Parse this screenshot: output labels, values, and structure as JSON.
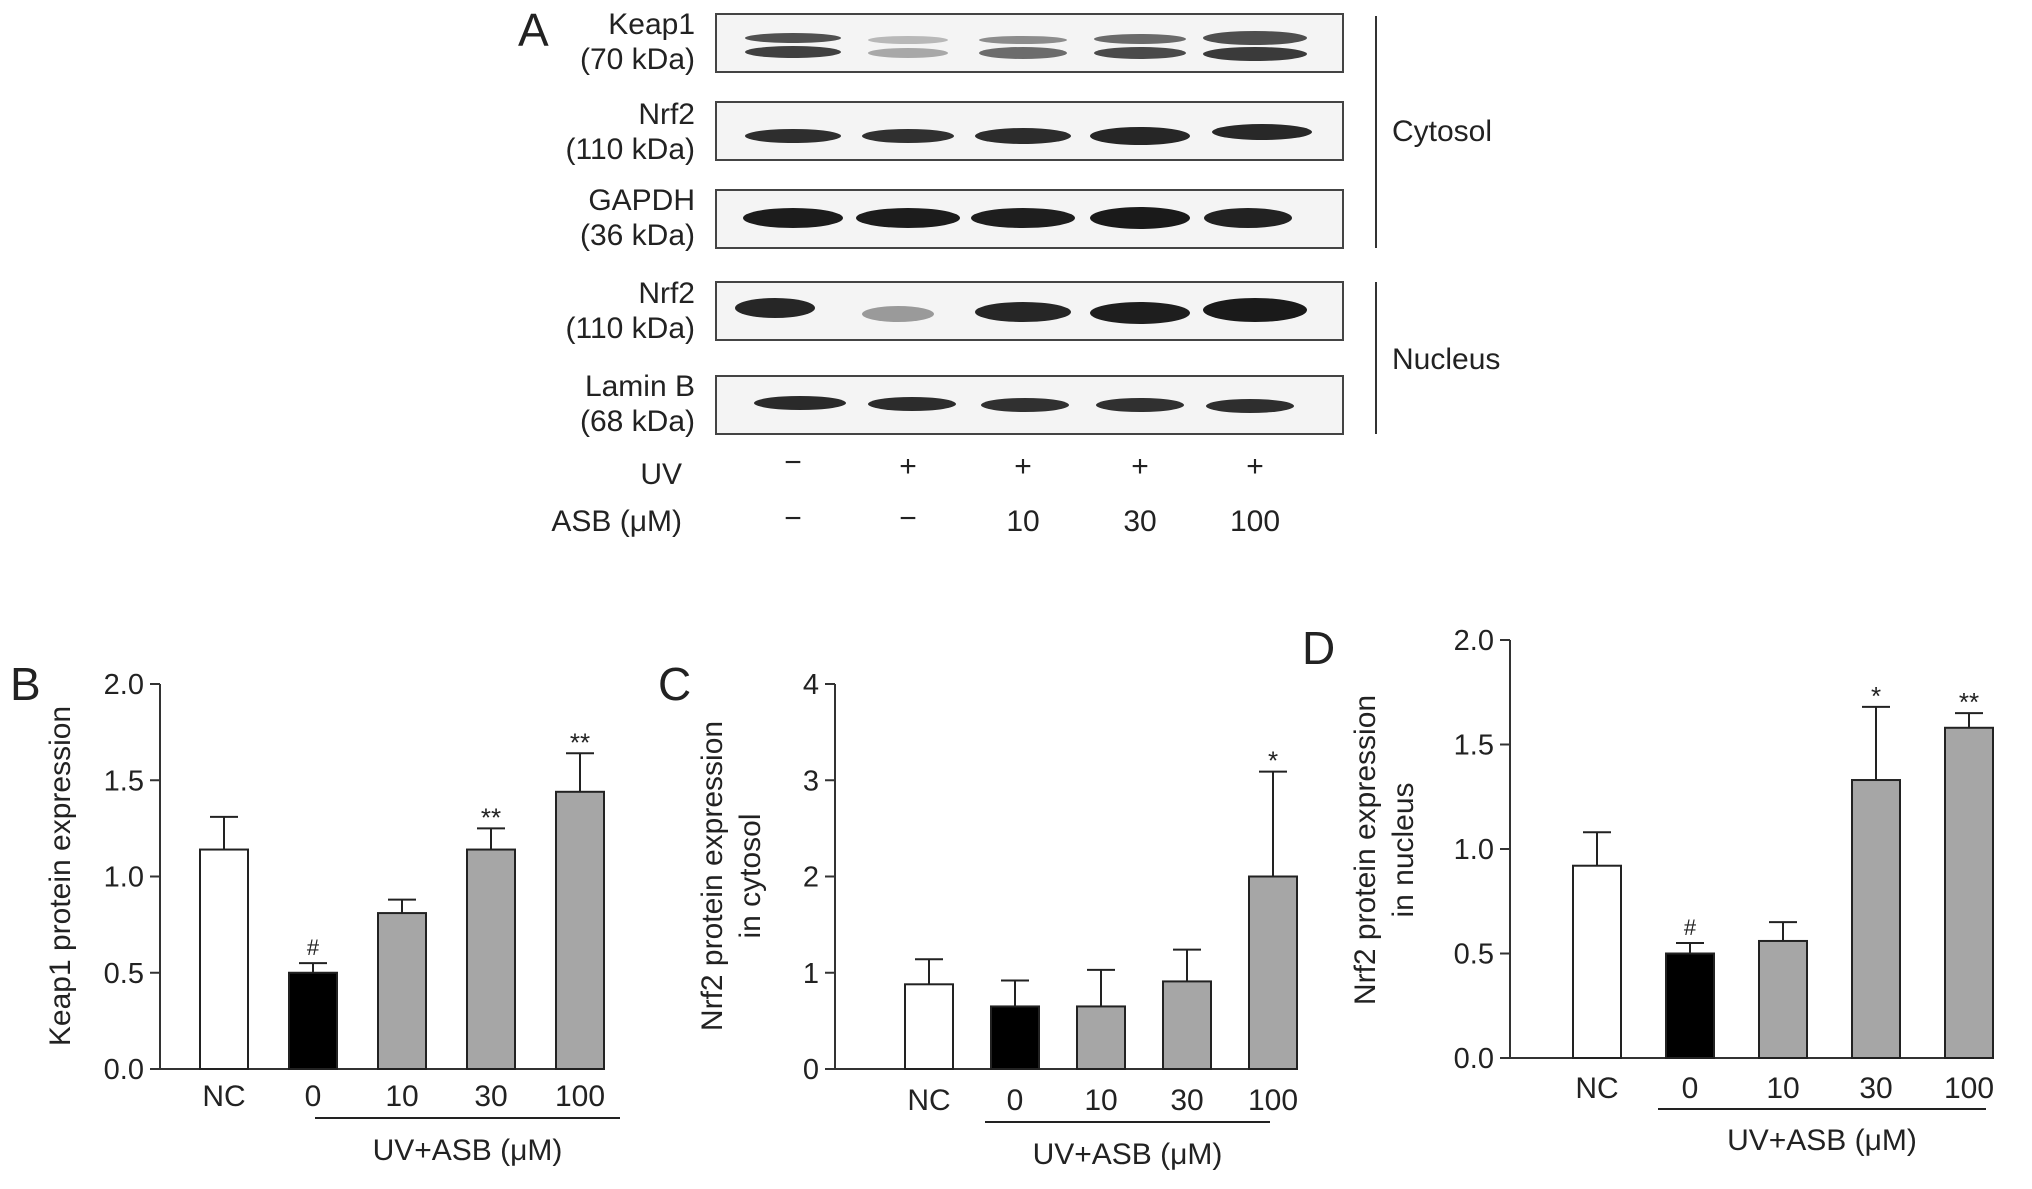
{
  "blot": {
    "panel_letter": "A",
    "rows": [
      {
        "protein": "Keap1",
        "mw": "(70 kDa)"
      },
      {
        "protein": "Nrf2",
        "mw": "(110 kDa)"
      },
      {
        "protein": "GAPDH",
        "mw": "(36 kDa)"
      },
      {
        "protein": "Nrf2",
        "mw": "(110 kDa)"
      },
      {
        "protein": "Lamin B",
        "mw": "(68 kDa)"
      }
    ],
    "fractions": [
      "Cytosol",
      "Nucleus"
    ],
    "uv_label": "UV",
    "uv_values": [
      "−",
      "+",
      "+",
      "+",
      "+"
    ],
    "asb_label": "ASB (μM)",
    "asb_values": [
      "−",
      "−",
      "10",
      "30",
      "100"
    ]
  },
  "chart_data": [
    {
      "panel": "B",
      "type": "bar",
      "ylabel": "Keap1 protein expression",
      "ylim": [
        0,
        2.0
      ],
      "yticks": [
        "0.0",
        "0.5",
        "1.0",
        "1.5",
        "2.0"
      ],
      "categories": [
        "NC",
        "0",
        "10",
        "30",
        "100"
      ],
      "values": [
        1.14,
        0.5,
        0.81,
        1.14,
        1.44
      ],
      "errors": [
        0.17,
        0.05,
        0.07,
        0.11,
        0.2
      ],
      "marks": [
        "",
        "#",
        "",
        "**",
        "**"
      ],
      "fills": [
        "#ffffff",
        "#000000",
        "#a6a6a6",
        "#a6a6a6",
        "#a6a6a6"
      ],
      "group_label": "UV+ASB (μM)"
    },
    {
      "panel": "C",
      "type": "bar",
      "ylabel": [
        "Nrf2 protein expression",
        "in cytosol"
      ],
      "ylim": [
        0,
        4
      ],
      "yticks": [
        "0",
        "1",
        "2",
        "3",
        "4"
      ],
      "categories": [
        "NC",
        "0",
        "10",
        "30",
        "100"
      ],
      "values": [
        0.88,
        0.65,
        0.65,
        0.91,
        2.0
      ],
      "errors": [
        0.26,
        0.27,
        0.38,
        0.33,
        1.09
      ],
      "marks": [
        "",
        "",
        "",
        "",
        "*"
      ],
      "fills": [
        "#ffffff",
        "#000000",
        "#a6a6a6",
        "#a6a6a6",
        "#a6a6a6"
      ],
      "group_label": "UV+ASB (μM)"
    },
    {
      "panel": "D",
      "type": "bar",
      "ylabel": [
        "Nrf2 protein expression",
        "in nucleus"
      ],
      "ylim": [
        0,
        2.0
      ],
      "yticks": [
        "0.0",
        "0.5",
        "1.0",
        "1.5",
        "2.0"
      ],
      "categories": [
        "NC",
        "0",
        "10",
        "30",
        "100"
      ],
      "values": [
        0.92,
        0.5,
        0.56,
        1.33,
        1.58
      ],
      "errors": [
        0.16,
        0.05,
        0.09,
        0.35,
        0.07
      ],
      "marks": [
        "",
        "#",
        "",
        "*",
        "**"
      ],
      "fills": [
        "#ffffff",
        "#000000",
        "#a6a6a6",
        "#a6a6a6",
        "#a6a6a6"
      ],
      "group_label": "UV+ASB (μM)"
    }
  ]
}
